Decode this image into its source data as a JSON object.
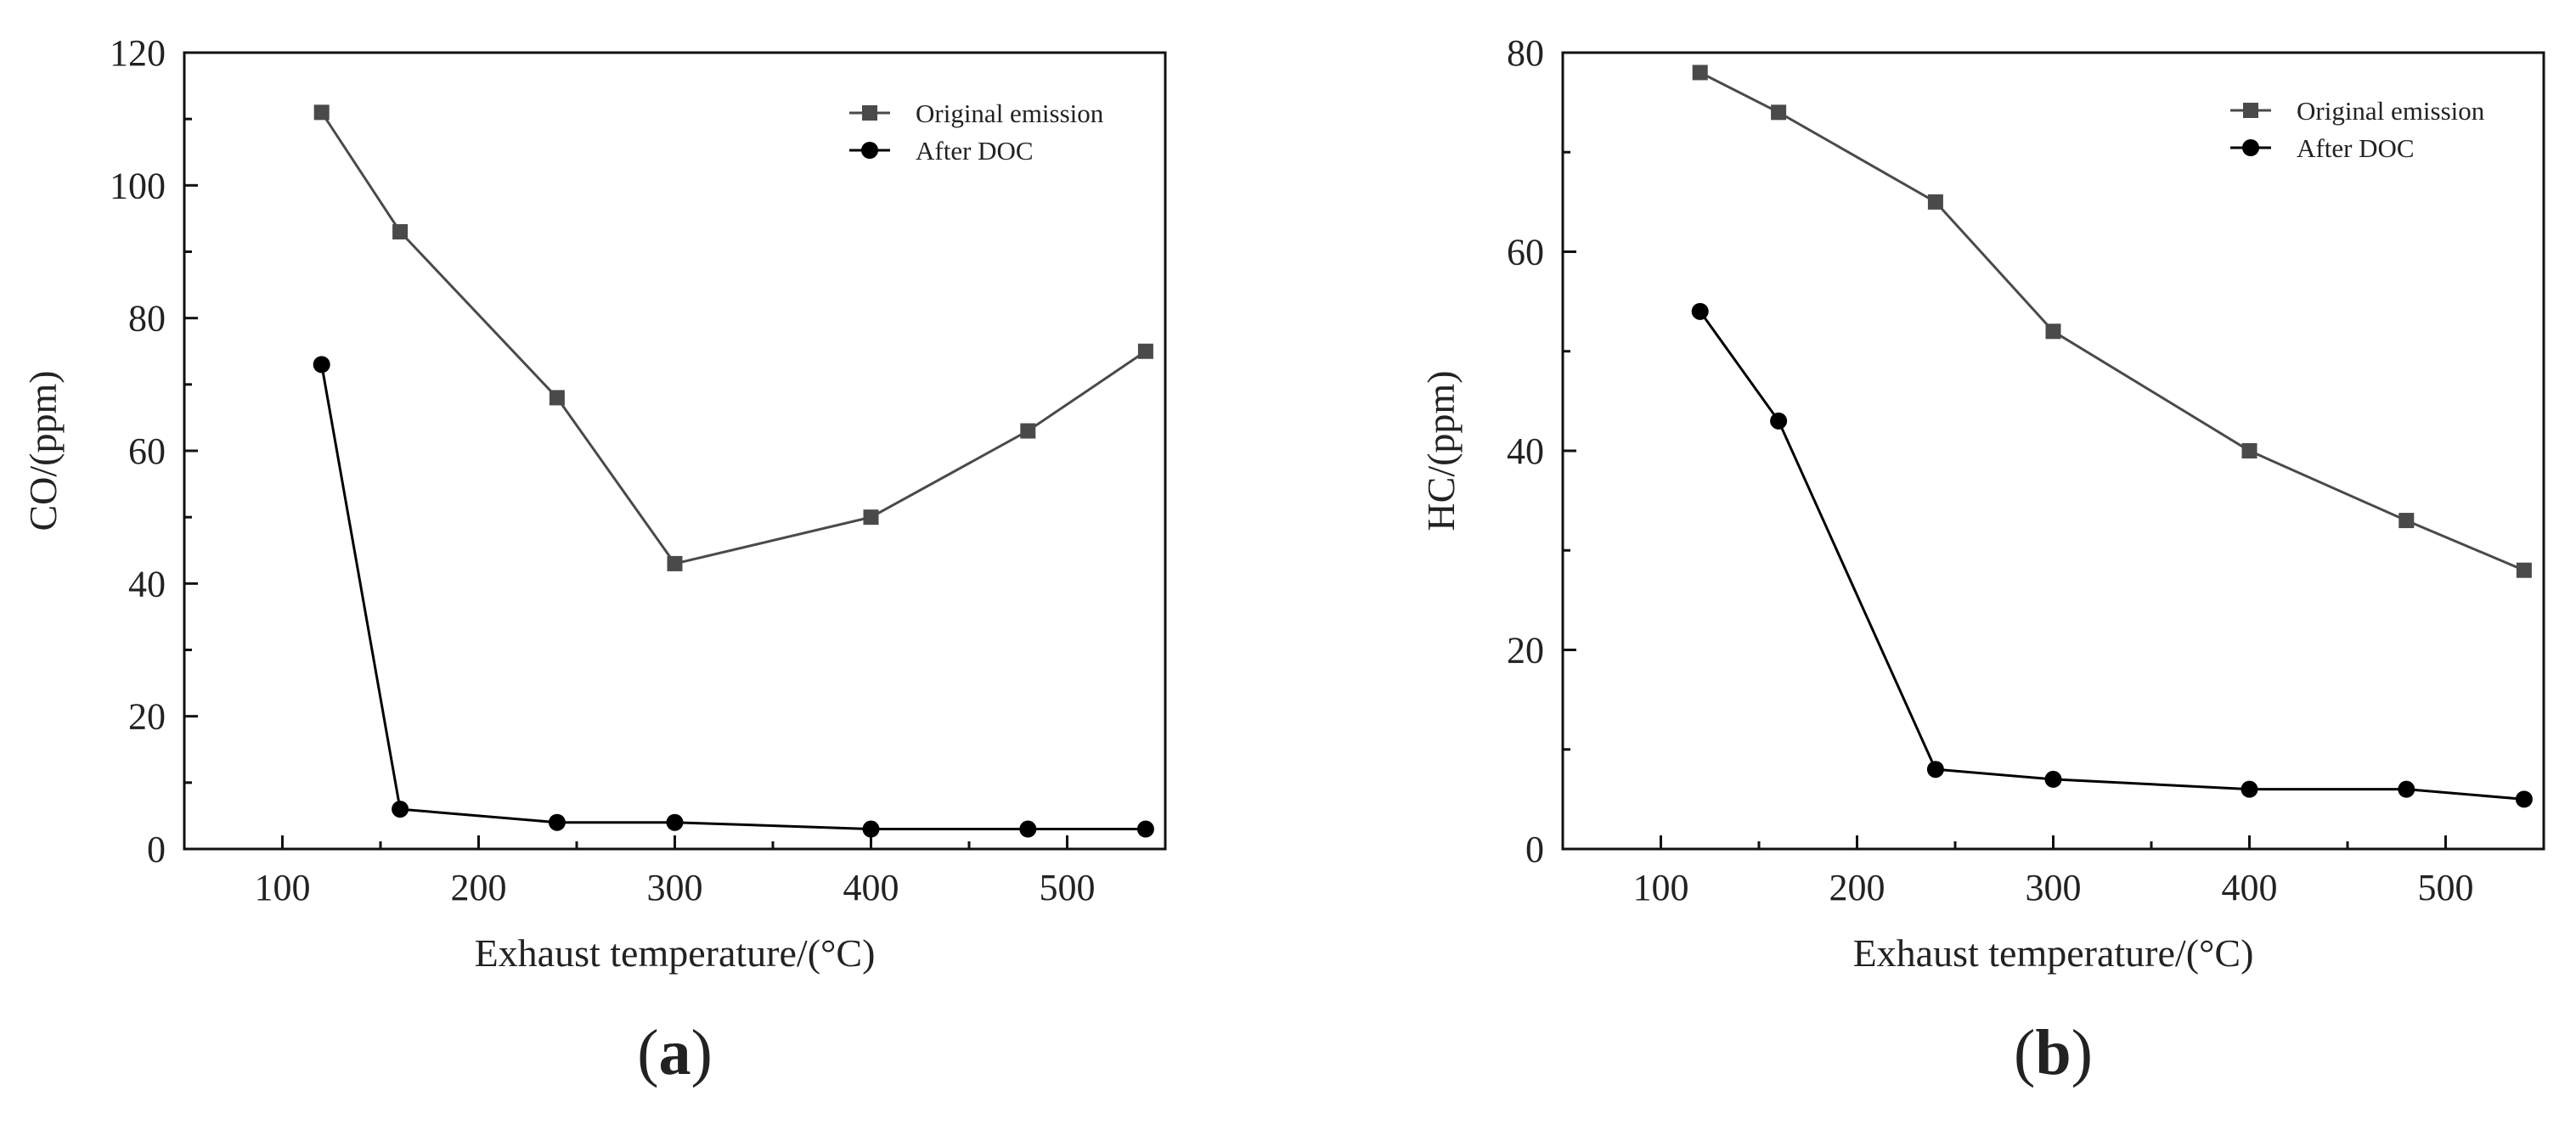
{
  "chart_data": [
    {
      "type": "line",
      "panel_label": "a",
      "xlabel": "Exhaust temperature/(°C)",
      "ylabel": "CO/(ppm)",
      "xlim": [
        50,
        550
      ],
      "ylim": [
        0,
        120
      ],
      "xticks": [
        100,
        200,
        300,
        400,
        500
      ],
      "yticks": [
        0,
        20,
        40,
        60,
        80,
        100,
        120
      ],
      "x_minor_ticks": [
        150,
        250,
        350,
        450
      ],
      "legend_position": "top-right",
      "series": [
        {
          "name": "Original emission",
          "marker": "square",
          "color": "#4a4a4a",
          "x": [
            120,
            160,
            240,
            300,
            400,
            480,
            540
          ],
          "y": [
            111,
            93,
            68,
            43,
            50,
            63,
            75
          ]
        },
        {
          "name": "After DOC",
          "marker": "circle",
          "color": "#000000",
          "x": [
            120,
            160,
            240,
            300,
            400,
            480,
            540
          ],
          "y": [
            73,
            6,
            4,
            4,
            3,
            3,
            3
          ]
        }
      ]
    },
    {
      "type": "line",
      "panel_label": "b",
      "xlabel": "Exhaust temperature/(°C)",
      "ylabel": "HC/(ppm)",
      "xlim": [
        50,
        550
      ],
      "ylim": [
        0,
        80
      ],
      "xticks": [
        100,
        200,
        300,
        400,
        500
      ],
      "yticks": [
        0,
        20,
        40,
        60,
        80
      ],
      "x_minor_ticks": [
        150,
        250,
        350,
        450
      ],
      "legend_position": "top-right",
      "series": [
        {
          "name": "Original emission",
          "marker": "square",
          "color": "#4a4a4a",
          "x": [
            120,
            160,
            240,
            300,
            400,
            480,
            540
          ],
          "y": [
            78,
            74,
            65,
            52,
            40,
            33,
            28
          ]
        },
        {
          "name": "After DOC",
          "marker": "circle",
          "color": "#000000",
          "x": [
            120,
            160,
            240,
            300,
            400,
            480,
            540
          ],
          "y": [
            54,
            43,
            8,
            7,
            6,
            6,
            5
          ]
        }
      ]
    }
  ]
}
